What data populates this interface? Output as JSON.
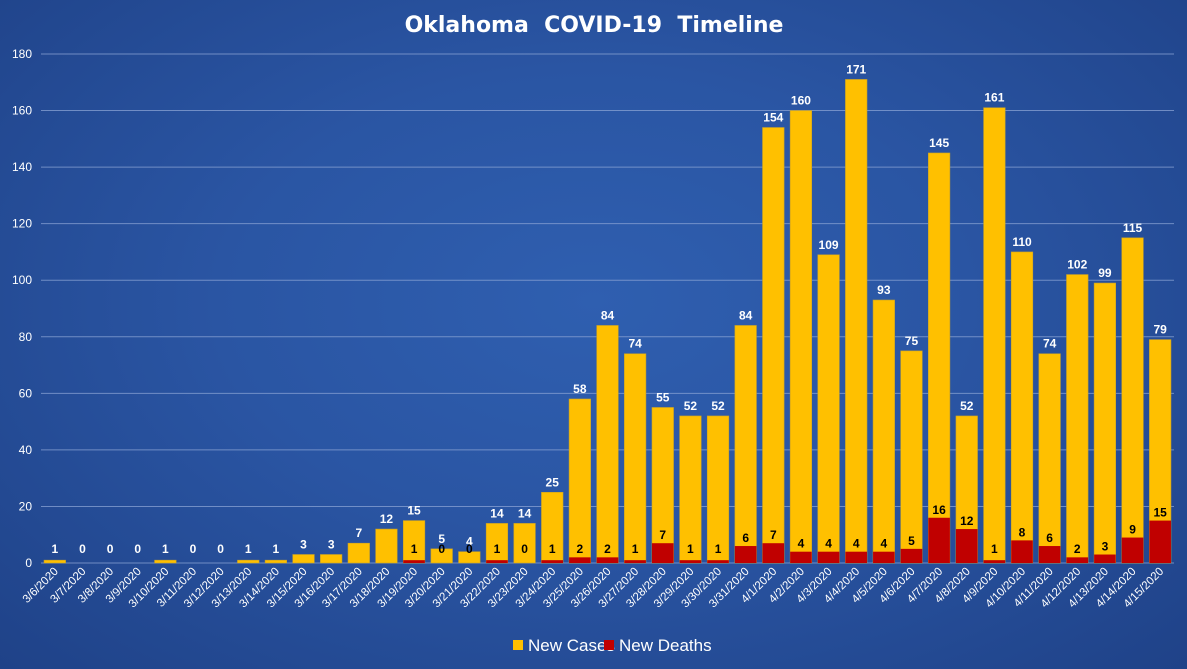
{
  "chart_data": {
    "type": "bar",
    "title": "Oklahoma  COVID-19  Timeline",
    "xlabel": "",
    "ylabel": "",
    "ylim": [
      0,
      180
    ],
    "yticks": [
      0,
      20,
      40,
      60,
      80,
      100,
      120,
      140,
      160,
      180
    ],
    "grid": true,
    "legend_position": "bottom",
    "categories": [
      "3/6/2020",
      "3/7/2020",
      "3/8/2020",
      "3/9/2020",
      "3/10/2020",
      "3/11/2020",
      "3/12/2020",
      "3/13/2020",
      "3/14/2020",
      "3/15/2020",
      "3/16/2020",
      "3/17/2020",
      "3/18/2020",
      "3/19/2020",
      "3/20/2020",
      "3/21/2020",
      "3/22/2020",
      "3/23/2020",
      "3/24/2020",
      "3/25/2020",
      "3/26/2020",
      "3/27/2020",
      "3/28/2020",
      "3/29/2020",
      "3/30/2020",
      "3/31/2020",
      "4/1/2020",
      "4/2/2020",
      "4/3/2020",
      "4/4/2020",
      "4/5/2020",
      "4/6/2020",
      "4/7/2020",
      "4/8/2020",
      "4/9/2020",
      "4/10/2020",
      "4/11/2020",
      "4/12/2020",
      "4/13/2020",
      "4/14/2020",
      "4/15/2020"
    ],
    "series": [
      {
        "name": "New Cases",
        "color": "#ffc000",
        "values": [
          1,
          0,
          0,
          0,
          1,
          0,
          0,
          1,
          1,
          3,
          3,
          7,
          12,
          15,
          5,
          4,
          14,
          14,
          25,
          58,
          84,
          74,
          55,
          52,
          52,
          84,
          154,
          160,
          109,
          171,
          93,
          75,
          145,
          52,
          161,
          110,
          74,
          102,
          99,
          115,
          79
        ],
        "labels": [
          "1",
          "0",
          "0",
          "0",
          "1",
          "0",
          "0",
          "1",
          "1",
          "3",
          "3",
          "7",
          "12",
          "15",
          "5",
          "4",
          "14",
          "14",
          "25",
          "58",
          "84",
          "74",
          "55",
          "52",
          "52",
          "84",
          "154",
          "160",
          "109",
          "171",
          "93",
          "75",
          "145",
          "52",
          "161",
          "110",
          "74",
          "102",
          "99",
          "115",
          "79"
        ]
      },
      {
        "name": "New Deaths",
        "color": "#c00000",
        "values": [
          0,
          0,
          0,
          0,
          0,
          0,
          0,
          0,
          0,
          0,
          0,
          0,
          0,
          1,
          0,
          0,
          1,
          0,
          1,
          2,
          2,
          1,
          7,
          1,
          1,
          6,
          7,
          4,
          4,
          4,
          4,
          5,
          16,
          12,
          1,
          8,
          6,
          2,
          3,
          9,
          15
        ],
        "labels": [
          null,
          null,
          null,
          null,
          null,
          null,
          null,
          null,
          null,
          null,
          null,
          null,
          null,
          "1",
          "0",
          "0",
          "1",
          "0",
          "1",
          "2",
          "2",
          "1",
          "7",
          "1",
          "1",
          "6",
          "7",
          "4",
          "4",
          "4",
          "4",
          "5",
          "16",
          "12",
          "1",
          "8",
          "6",
          "2",
          "3",
          "9",
          "15"
        ]
      }
    ]
  },
  "colors": {
    "cases": "#ffc000",
    "cases_stroke": "#c9a227",
    "deaths": "#c00000",
    "grid": "#8aa3d4",
    "text": "#ffffff"
  }
}
